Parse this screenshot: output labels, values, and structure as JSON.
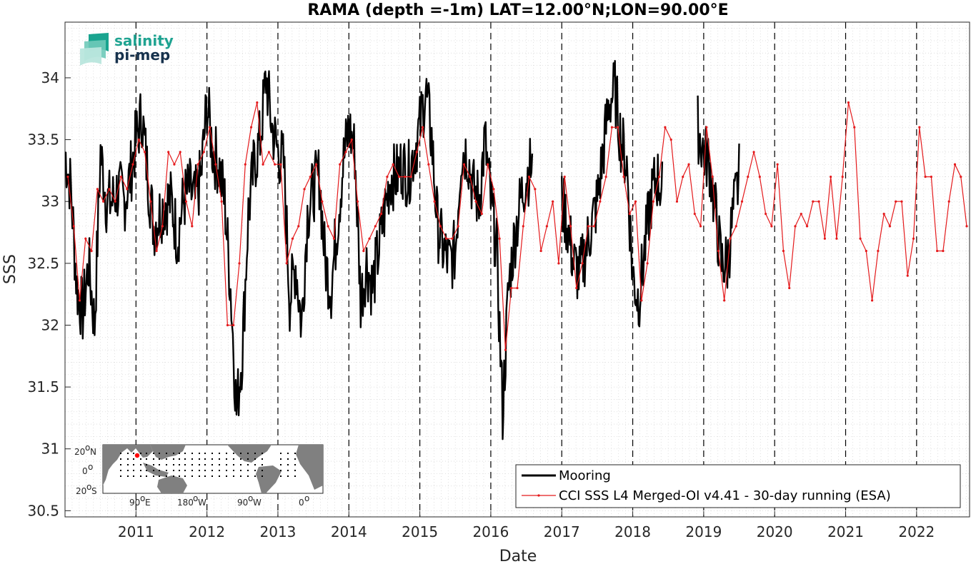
{
  "chart_data": {
    "type": "line",
    "title": "RAMA (depth =-1m) LAT=12.00°N;LON=90.00°E",
    "xlabel": "Date",
    "ylabel": "SSS",
    "xlim": [
      "2010-01-01",
      "2022-09-30"
    ],
    "ylim": [
      30.45,
      34.45
    ],
    "yticks": [
      30.5,
      31,
      31.5,
      32,
      32.5,
      33,
      33.5,
      34
    ],
    "ytick_labels": [
      "30.5",
      "31",
      "31.5",
      "32",
      "32.5",
      "33",
      "33.5",
      "34"
    ],
    "xticks": [
      "2011",
      "2012",
      "2013",
      "2014",
      "2015",
      "2016",
      "2017",
      "2018",
      "2019",
      "2020",
      "2021",
      "2022"
    ],
    "grid": "minor dotted",
    "year_markers": "dashed vertical lines at each January 1",
    "legend_position": "bottom-right",
    "series": [
      {
        "name": "Mooring",
        "color": "#000000",
        "style": "thick line",
        "x": [
          "2010-01",
          "2010-02",
          "2010-03",
          "2010-04",
          "2010-05",
          "2010-06",
          "2010-07",
          "2010-08",
          "2010-09",
          "2010-10",
          "2010-11",
          "2010-12",
          "2011-01",
          "2011-02",
          "2011-03",
          "2011-04",
          "2011-05",
          "2011-06",
          "2011-07",
          "2011-08",
          "2011-09",
          "2011-10",
          "2011-11",
          "2011-12",
          "2012-01",
          "2012-02",
          "2012-03",
          "2012-04",
          "2012-05",
          "2012-06",
          "2012-07",
          "2012-08",
          "2012-09",
          "2012-10",
          "2012-11",
          "2012-12",
          "2013-01",
          "2013-02",
          "2013-03",
          "2013-04",
          "2013-05",
          "2013-06",
          "2013-07",
          "2013-08",
          "2013-09",
          "2013-10",
          "2013-11",
          "2013-12",
          "2014-01",
          "2014-02",
          "2014-03",
          "2014-04",
          "2014-05",
          "2014-06",
          "2014-07",
          "2014-08",
          "2014-09",
          "2014-10",
          "2014-11",
          "2014-12",
          "2015-01",
          "2015-02",
          "2015-03",
          "2015-04",
          "2015-05",
          "2015-06",
          "2015-07",
          "2015-08",
          "2015-09",
          "2015-10",
          "2015-11",
          "2015-12",
          "2016-01",
          "2016-02",
          "2016-03",
          "2016-04",
          "2016-05",
          "2016-06",
          "2016-07",
          "2016-08",
          "2017-01",
          "2017-02",
          "2017-03",
          "2017-04",
          "2017-05",
          "2017-06",
          "2017-07",
          "2017-08",
          "2017-09",
          "2017-10",
          "2017-11",
          "2017-12",
          "2018-01",
          "2018-02",
          "2018-03",
          "2018-04",
          "2018-05",
          "2018-06",
          "2018-12",
          "2019-01",
          "2019-02",
          "2019-03",
          "2019-04",
          "2019-05",
          "2019-06",
          "2019-07"
        ],
        "y": [
          33.4,
          33.1,
          32.3,
          32.1,
          32.5,
          32.0,
          33.4,
          33.0,
          33.0,
          33.1,
          33.0,
          33.2,
          33.5,
          33.7,
          33.2,
          32.8,
          32.9,
          33.0,
          33.0,
          32.7,
          33.0,
          33.1,
          33.0,
          33.2,
          33.8,
          33.4,
          33.3,
          33.0,
          32.3,
          31.3,
          31.8,
          32.9,
          33.3,
          33.5,
          34.0,
          33.6,
          33.4,
          33.3,
          32.2,
          32.5,
          32.0,
          32.9,
          33.1,
          33.2,
          32.5,
          32.3,
          32.8,
          33.3,
          33.6,
          33.4,
          32.2,
          32.5,
          32.3,
          32.6,
          32.9,
          33.2,
          33.2,
          33.3,
          33.2,
          33.4,
          33.6,
          33.9,
          33.5,
          32.8,
          32.6,
          32.5,
          32.6,
          33.4,
          33.4,
          33.1,
          33.0,
          33.5,
          33.0,
          32.6,
          31.3,
          32.3,
          32.7,
          33.0,
          33.2,
          33.3,
          33.0,
          32.8,
          32.5,
          32.4,
          32.6,
          32.8,
          33.0,
          33.4,
          33.8,
          33.9,
          33.5,
          33.3,
          32.4,
          32.2,
          32.6,
          33.0,
          33.2,
          33.1,
          33.6,
          33.4,
          33.3,
          32.9,
          32.5,
          32.5,
          32.9,
          33.2
        ]
      },
      {
        "name": "CCI SSS L4 Merged-OI v4.41 - 30-day running (ESA)",
        "color": "#e41a1c",
        "style": "thin line with dot markers",
        "x": [
          "2010-01",
          "2010-02",
          "2010-03",
          "2010-04",
          "2010-05",
          "2010-06",
          "2010-07",
          "2010-08",
          "2010-09",
          "2010-10",
          "2010-11",
          "2010-12",
          "2011-01",
          "2011-02",
          "2011-03",
          "2011-04",
          "2011-05",
          "2011-06",
          "2011-07",
          "2011-08",
          "2011-09",
          "2011-10",
          "2011-11",
          "2011-12",
          "2012-01",
          "2012-02",
          "2012-03",
          "2012-04",
          "2012-05",
          "2012-06",
          "2012-07",
          "2012-08",
          "2012-09",
          "2012-10",
          "2012-11",
          "2012-12",
          "2013-01",
          "2013-02",
          "2013-03",
          "2013-04",
          "2013-05",
          "2013-06",
          "2013-07",
          "2013-08",
          "2013-09",
          "2013-10",
          "2013-11",
          "2013-12",
          "2014-01",
          "2014-02",
          "2014-03",
          "2014-04",
          "2014-05",
          "2014-06",
          "2014-07",
          "2014-08",
          "2014-09",
          "2014-10",
          "2014-11",
          "2014-12",
          "2015-01",
          "2015-02",
          "2015-03",
          "2015-04",
          "2015-05",
          "2015-06",
          "2015-07",
          "2015-08",
          "2015-09",
          "2015-10",
          "2015-11",
          "2015-12",
          "2016-01",
          "2016-02",
          "2016-03",
          "2016-04",
          "2016-05",
          "2016-06",
          "2016-07",
          "2016-08",
          "2016-09",
          "2016-10",
          "2016-11",
          "2016-12",
          "2017-01",
          "2017-02",
          "2017-03",
          "2017-04",
          "2017-05",
          "2017-06",
          "2017-07",
          "2017-08",
          "2017-09",
          "2017-10",
          "2017-11",
          "2017-12",
          "2018-01",
          "2018-02",
          "2018-03",
          "2018-04",
          "2018-05",
          "2018-06",
          "2018-07",
          "2018-08",
          "2018-09",
          "2018-10",
          "2018-11",
          "2018-12",
          "2019-01",
          "2019-02",
          "2019-03",
          "2019-04",
          "2019-05",
          "2019-06",
          "2019-07",
          "2019-08",
          "2019-09",
          "2019-10",
          "2019-11",
          "2019-12",
          "2020-01",
          "2020-02",
          "2020-03",
          "2020-04",
          "2020-05",
          "2020-06",
          "2020-07",
          "2020-08",
          "2020-09",
          "2020-10",
          "2020-11",
          "2020-12",
          "2021-01",
          "2021-02",
          "2021-03",
          "2021-04",
          "2021-05",
          "2021-06",
          "2021-07",
          "2021-08",
          "2021-09",
          "2021-10",
          "2021-11",
          "2021-12",
          "2022-01",
          "2022-02",
          "2022-03",
          "2022-04",
          "2022-05",
          "2022-06",
          "2022-07",
          "2022-08",
          "2022-09"
        ],
        "y": [
          33.2,
          32.8,
          32.2,
          32.7,
          32.6,
          33.1,
          33.0,
          33.1,
          33.0,
          33.2,
          33.1,
          33.3,
          33.5,
          33.4,
          33.0,
          32.6,
          32.8,
          33.4,
          33.3,
          33.4,
          33.0,
          32.8,
          33.3,
          33.4,
          33.6,
          33.3,
          33.0,
          32.0,
          32.0,
          32.5,
          33.3,
          33.6,
          33.8,
          33.3,
          33.4,
          33.3,
          33.3,
          32.5,
          32.7,
          32.8,
          33.1,
          33.2,
          33.3,
          33.0,
          32.8,
          32.7,
          33.3,
          33.4,
          33.5,
          33.0,
          32.6,
          32.7,
          32.8,
          32.9,
          33.2,
          33.3,
          33.2,
          33.2,
          33.2,
          33.4,
          33.6,
          33.3,
          33.0,
          32.8,
          32.7,
          32.7,
          32.8,
          33.3,
          33.2,
          33.0,
          32.9,
          33.3,
          33.1,
          32.7,
          31.8,
          32.3,
          32.3,
          32.8,
          33.2,
          33.1,
          32.6,
          32.8,
          33.0,
          32.5,
          33.2,
          32.8,
          32.3,
          32.5,
          32.8,
          32.8,
          33.0,
          33.2,
          33.6,
          33.6,
          33.2,
          32.9,
          33.0,
          32.2,
          32.5,
          33.0,
          33.2,
          33.6,
          33.5,
          33.0,
          33.2,
          33.3,
          32.9,
          32.8,
          33.6,
          33.2,
          32.6,
          32.2,
          32.7,
          32.8,
          33.0,
          33.2,
          33.4,
          33.2,
          32.9,
          32.8,
          33.3,
          32.6,
          32.3,
          32.8,
          32.9,
          32.8,
          33.0,
          33.0,
          32.7,
          33.2,
          32.7,
          33.2,
          33.8,
          33.6,
          32.7,
          32.6,
          32.2,
          32.6,
          32.9,
          32.8,
          33.0,
          33.0,
          32.4,
          32.7,
          33.6,
          33.2,
          33.2,
          32.6,
          32.6,
          33.0,
          33.3,
          33.2,
          32.8
        ]
      }
    ]
  },
  "logo": {
    "line1": "salinity",
    "line2": "pi-mep"
  },
  "inset_map": {
    "lat_labels": [
      "20",
      "0",
      "20"
    ],
    "lat_suffixes": [
      "N",
      "",
      "S"
    ],
    "lon_labels": [
      "90",
      "180",
      "90",
      "0"
    ],
    "lon_suffixes": [
      "E",
      "W",
      "W",
      ""
    ],
    "degree": "o",
    "ocean_color": "#ffffff",
    "land_color": "#808080",
    "station_color": "#ff0000"
  }
}
